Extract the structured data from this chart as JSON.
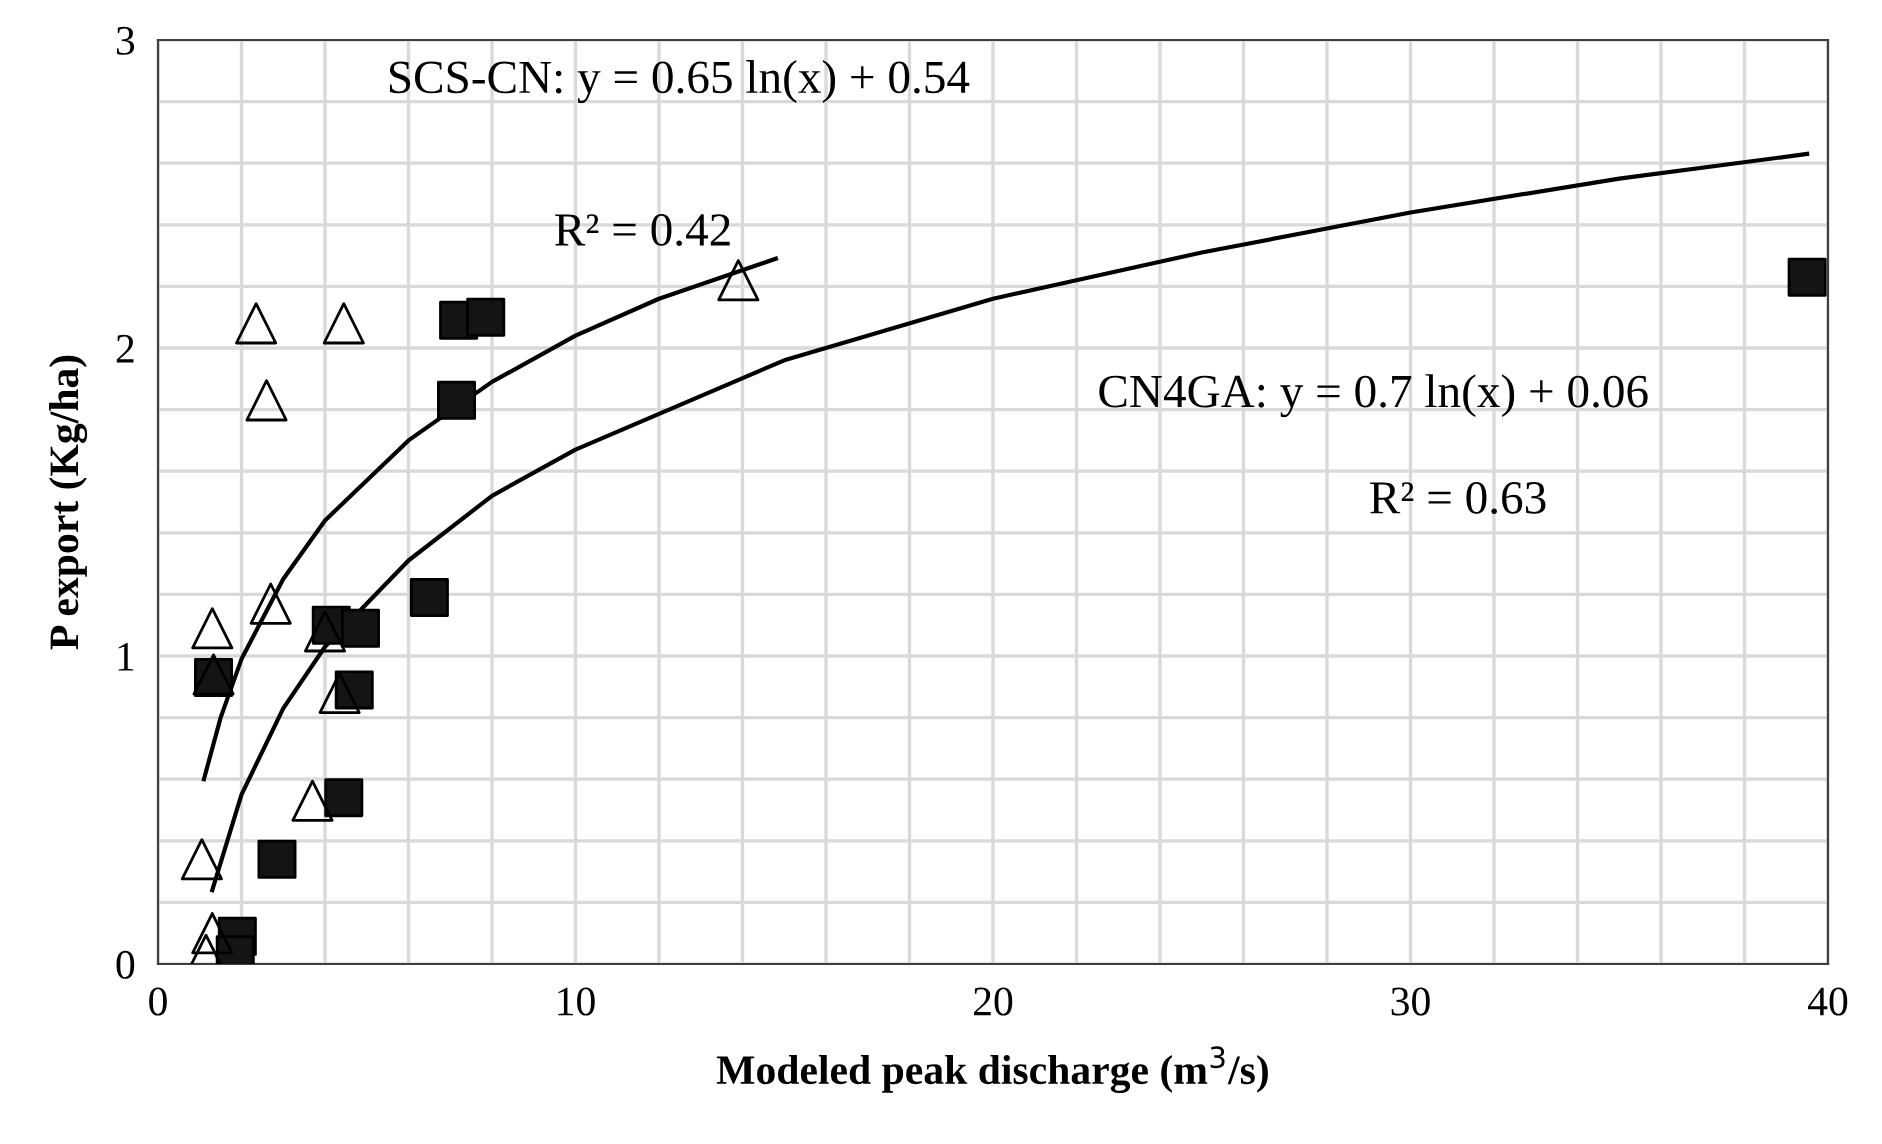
{
  "chart_data": {
    "type": "scatter",
    "xlabel": "Modeled peak discharge (m$^{3}$/s)",
    "ylabel": "P export (Kg/ha)",
    "xlim": [
      0,
      40
    ],
    "ylim": [
      0,
      3
    ],
    "xticks": [
      0,
      {
        "value": 2,
        "label": null
      },
      {
        "value": 4,
        "label": null
      },
      {
        "value": 6,
        "label": null
      },
      {
        "value": 8,
        "label": null
      },
      10,
      {
        "value": 12,
        "label": null
      },
      {
        "value": 14,
        "label": null
      },
      {
        "value": 16,
        "label": null
      },
      {
        "value": 18,
        "label": null
      },
      20,
      {
        "value": 22,
        "label": null
      },
      {
        "value": 24,
        "label": null
      },
      {
        "value": 26,
        "label": null
      },
      {
        "value": 28,
        "label": null
      },
      30,
      {
        "value": 32,
        "label": null
      },
      {
        "value": 34,
        "label": null
      },
      {
        "value": 36,
        "label": null
      },
      {
        "value": 38,
        "label": null
      },
      40
    ],
    "yticks": [
      0,
      {
        "value": 0.2,
        "label": null
      },
      {
        "value": 0.4,
        "label": null
      },
      {
        "value": 0.6,
        "label": null
      },
      {
        "value": 0.8,
        "label": null
      },
      1,
      {
        "value": 1.2,
        "label": null
      },
      {
        "value": 1.4,
        "label": null
      },
      {
        "value": 1.6,
        "label": null
      },
      {
        "value": 1.8,
        "label": null
      },
      2,
      {
        "value": 2.2,
        "label": null
      },
      {
        "value": 2.4,
        "label": null
      },
      {
        "value": 2.6,
        "label": null
      },
      {
        "value": 2.8,
        "label": null
      },
      3
    ],
    "grid": true,
    "legend": false,
    "series": [
      {
        "type": "line",
        "marker": "none",
        "line_style": "solid",
        "color": "#000000",
        "x": [
          1.1,
          1.5,
          2,
          3,
          4,
          6,
          8,
          10,
          12,
          14.8
        ],
        "values": [
          0.6,
          0.8,
          0.99,
          1.25,
          1.44,
          1.7,
          1.89,
          2.04,
          2.16,
          2.29
        ]
      },
      {
        "type": "line",
        "marker": "none",
        "line_style": "solid",
        "color": "#000000",
        "x": [
          1.3,
          2,
          3,
          4,
          6,
          8,
          10,
          15,
          20,
          25,
          30,
          35,
          39.5
        ],
        "values": [
          0.24,
          0.55,
          0.83,
          1.03,
          1.31,
          1.52,
          1.67,
          1.96,
          2.16,
          2.31,
          2.44,
          2.55,
          2.63
        ]
      },
      {
        "marker": "triangle",
        "color": "#000000",
        "x": [
          2.35,
          4.45,
          2.6,
          2.7,
          1.3,
          1.33,
          4.0,
          4.35,
          3.7,
          1.05,
          1.3,
          1.15,
          13.9
        ],
        "values": [
          2.08,
          2.08,
          1.83,
          1.17,
          1.09,
          0.94,
          1.08,
          0.88,
          0.53,
          0.34,
          0.1,
          0.03,
          2.22
        ]
      },
      {
        "marker": "square",
        "color": "#141414",
        "x": [
          7.2,
          7.85,
          7.15,
          6.5,
          4.15,
          4.85,
          1.33,
          4.7,
          4.45,
          2.85,
          1.9,
          1.85,
          39.5
        ],
        "values": [
          2.09,
          2.1,
          1.83,
          1.19,
          1.1,
          1.09,
          0.93,
          0.89,
          0.54,
          0.34,
          0.09,
          0.03,
          2.23
        ]
      }
    ],
    "annotations": [
      "SCS-CN: y = 0.65 ln(x) + 0.54",
      "R² = 0.42",
      "CN4GA: y = 0.7 ln(x) + 0.06",
      "R² = 0.63"
    ]
  }
}
